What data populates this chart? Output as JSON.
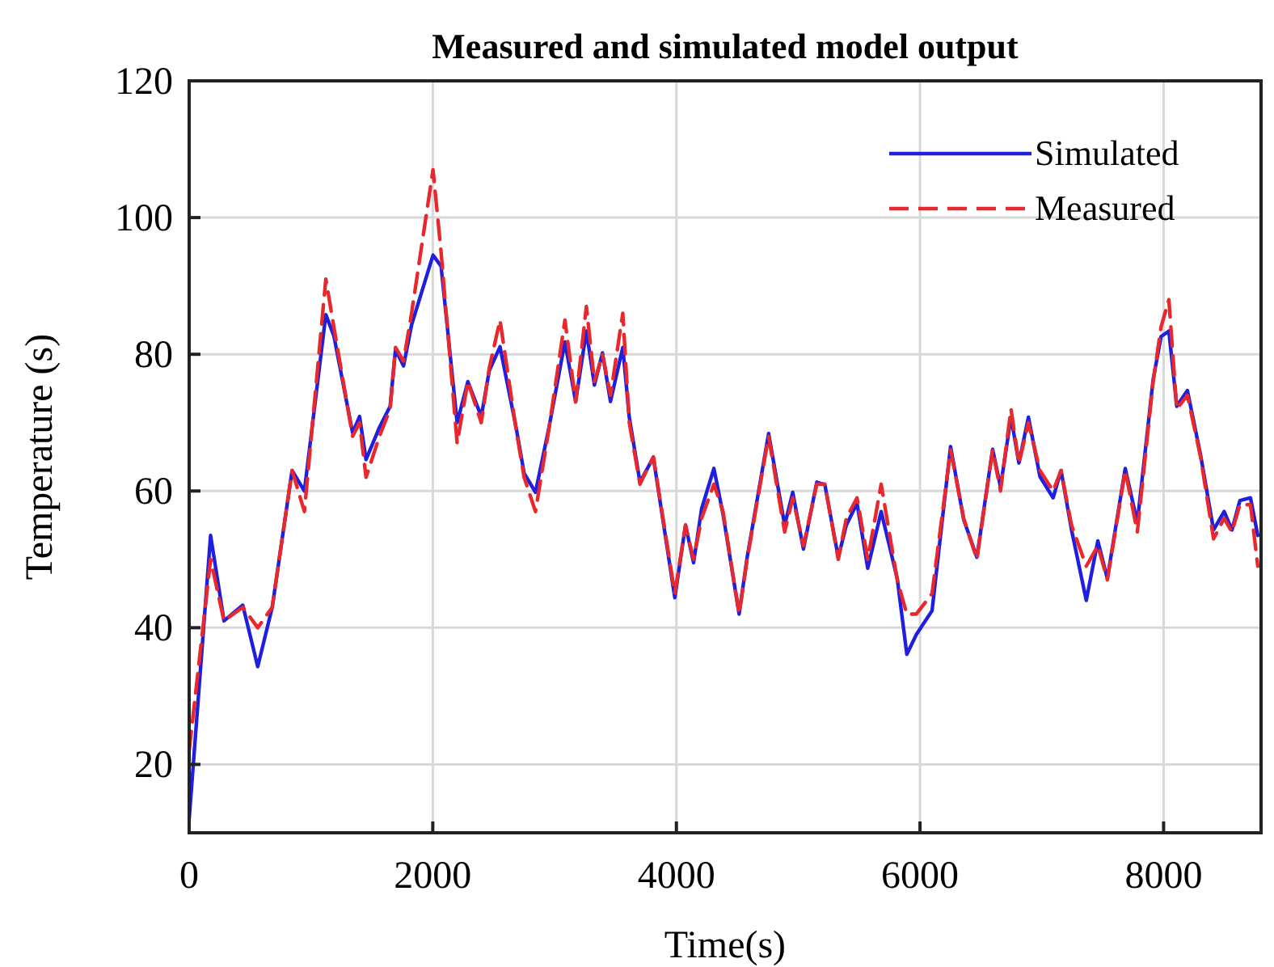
{
  "chart_data": {
    "type": "line",
    "title": "Measured and simulated model output",
    "xlabel": "Time(s)",
    "ylabel": "Temperature (s)",
    "x": [
      0,
      176,
      286,
      440,
      563,
      682,
      845,
      946,
      1122,
      1188,
      1342,
      1399,
      1452,
      1562,
      1650,
      1694,
      1760,
      1826,
      2002,
      2068,
      2200,
      2288,
      2398,
      2464,
      2552,
      2684,
      2750,
      2843,
      2953,
      3085,
      3173,
      3261,
      3327,
      3393,
      3459,
      3560,
      3613,
      3701,
      3811,
      3987,
      4075,
      4141,
      4207,
      4308,
      4383,
      4515,
      4581,
      4757,
      4889,
      4955,
      5043,
      5153,
      5219,
      5329,
      5395,
      5483,
      5571,
      5681,
      5813,
      5892,
      5970,
      6099,
      6251,
      6359,
      6467,
      6596,
      6661,
      6747,
      6812,
      6890,
      6985,
      7093,
      7158,
      7244,
      7365,
      7460,
      7538,
      7685,
      7784,
      7914,
      7979,
      8043,
      8108,
      8195,
      8303,
      8410,
      8497,
      8561,
      8626,
      8713,
      8773
    ],
    "series": [
      {
        "name": "Simulated",
        "color": "#1f1fdd",
        "line_style": "solid",
        "values": [
          12,
          53.5,
          41,
          43.3,
          34.3,
          43,
          63,
          60,
          85.8,
          82.7,
          68.5,
          70.9,
          64.6,
          69.3,
          72.4,
          80.7,
          78.3,
          84.3,
          94.5,
          92.9,
          70,
          76,
          70.9,
          77.6,
          81.1,
          69.3,
          62.6,
          59.8,
          69.2,
          81.8,
          73.1,
          83.4,
          75.5,
          80.2,
          73.1,
          81,
          70.8,
          61.3,
          64.9,
          44.4,
          55,
          49.5,
          57.4,
          63.3,
          56.6,
          42,
          50.3,
          68.4,
          55,
          59.8,
          51.5,
          61.3,
          60.9,
          50.3,
          55,
          58.2,
          48.7,
          57,
          47.2,
          36.1,
          39,
          42.5,
          66.5,
          55.8,
          50.3,
          66.1,
          60.6,
          70.8,
          64.1,
          70.8,
          62.1,
          59,
          63,
          54.3,
          44,
          52.7,
          47.2,
          63.3,
          55.4,
          76.3,
          82.6,
          83.4,
          72.4,
          74.7,
          65.3,
          54.3,
          57,
          54.3,
          58.6,
          59,
          53.5
        ]
      },
      {
        "name": "Measured",
        "color": "#e8282d",
        "line_style": "dashed",
        "values": [
          22,
          50,
          41,
          43,
          40,
          43,
          63,
          57,
          91,
          84,
          68,
          70,
          62,
          68,
          72,
          81,
          79,
          86,
          107,
          95,
          67,
          76,
          70,
          78,
          85,
          69,
          62,
          57,
          69,
          85,
          73,
          87,
          76,
          80,
          74,
          86,
          70,
          61,
          65,
          45,
          55,
          50,
          56,
          61,
          57,
          42,
          50,
          68,
          54,
          59,
          52,
          61,
          61,
          50,
          56,
          59,
          50,
          61,
          47,
          42,
          42,
          45,
          66,
          56,
          50,
          66,
          60,
          72,
          64,
          70,
          63,
          60,
          63,
          55,
          49,
          52,
          47,
          63,
          54,
          76,
          84,
          88,
          72,
          74,
          65,
          53,
          56,
          54,
          58,
          58,
          49
        ]
      }
    ],
    "xlim": [
      0,
      8800
    ],
    "xticks": [
      0,
      2000,
      4000,
      6000,
      8000
    ],
    "ylim": [
      10,
      120
    ],
    "yticks": [
      20,
      40,
      60,
      80,
      100,
      120
    ],
    "grid": true,
    "legend": "top right"
  }
}
